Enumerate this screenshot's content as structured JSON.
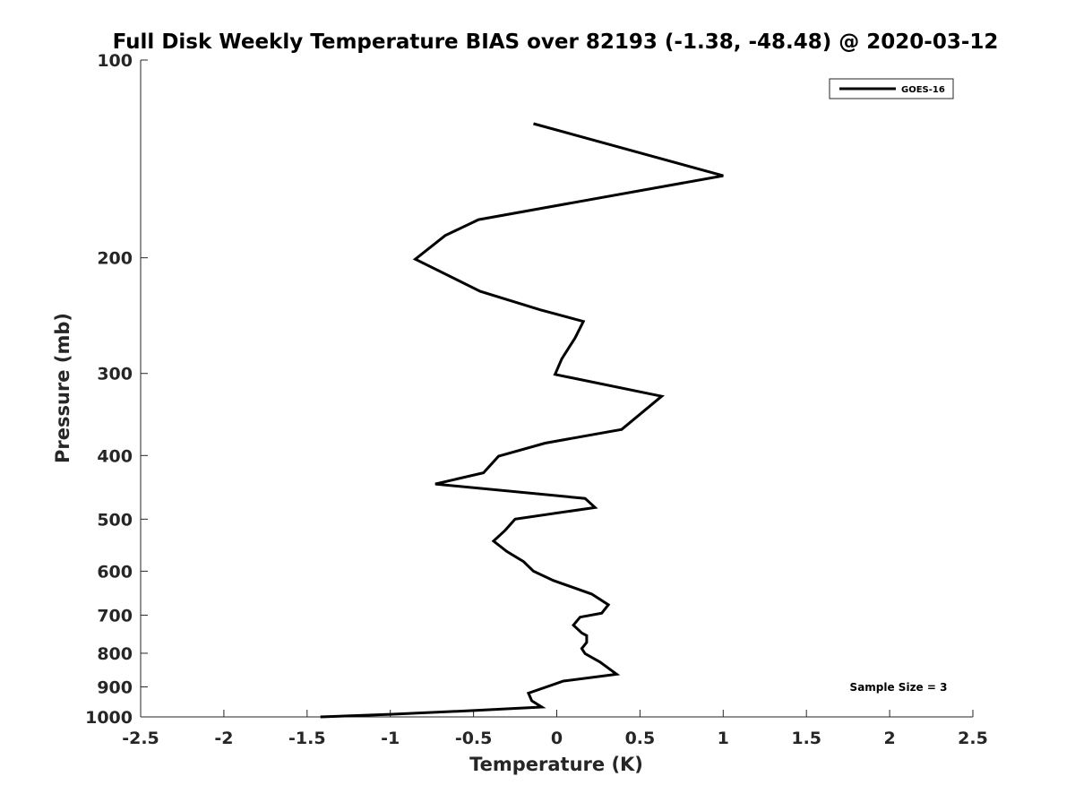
{
  "chart_data": {
    "type": "line",
    "title": "Full Disk Weekly Temperature BIAS over 82193 (-1.38, -48.48) @ 2020-03-12",
    "xlabel": "Temperature (K)",
    "ylabel": "Pressure (mb)",
    "xlim": [
      -2.5,
      2.5
    ],
    "ylim": [
      100,
      1000
    ],
    "y_scale": "log",
    "y_reversed": true,
    "grid": false,
    "legend_position": "top-right",
    "x_ticks": [
      {
        "value": -2.5,
        "label": "-2.5"
      },
      {
        "value": -2,
        "label": "-2"
      },
      {
        "value": -1.5,
        "label": "-1.5"
      },
      {
        "value": -1,
        "label": "-1"
      },
      {
        "value": -0.5,
        "label": "-0.5"
      },
      {
        "value": 0,
        "label": "0"
      },
      {
        "value": 0.5,
        "label": "0.5"
      },
      {
        "value": 1,
        "label": "1"
      },
      {
        "value": 1.5,
        "label": "1.5"
      },
      {
        "value": 2,
        "label": "2"
      },
      {
        "value": 2.5,
        "label": "2.5"
      }
    ],
    "y_ticks": [
      {
        "value": 100,
        "label": "100"
      },
      {
        "value": 200,
        "label": "200"
      },
      {
        "value": 300,
        "label": "300"
      },
      {
        "value": 400,
        "label": "400"
      },
      {
        "value": 500,
        "label": "500"
      },
      {
        "value": 600,
        "label": "600"
      },
      {
        "value": 700,
        "label": "700"
      },
      {
        "value": 800,
        "label": "800"
      },
      {
        "value": 900,
        "label": "900"
      },
      {
        "value": 1000,
        "label": "1000"
      }
    ],
    "series": [
      {
        "name": "GOES-16",
        "color": "#000000",
        "points": [
          {
            "x": -0.14,
            "y": 125
          },
          {
            "x": 1.0,
            "y": 150
          },
          {
            "x": -0.47,
            "y": 175
          },
          {
            "x": -0.67,
            "y": 185
          },
          {
            "x": -0.85,
            "y": 201
          },
          {
            "x": -0.46,
            "y": 225
          },
          {
            "x": -0.1,
            "y": 240
          },
          {
            "x": 0.16,
            "y": 250
          },
          {
            "x": 0.11,
            "y": 265
          },
          {
            "x": 0.03,
            "y": 285
          },
          {
            "x": -0.01,
            "y": 301
          },
          {
            "x": 0.63,
            "y": 325
          },
          {
            "x": 0.39,
            "y": 365
          },
          {
            "x": -0.07,
            "y": 383
          },
          {
            "x": -0.35,
            "y": 401
          },
          {
            "x": -0.44,
            "y": 425
          },
          {
            "x": -0.73,
            "y": 442
          },
          {
            "x": 0.17,
            "y": 465
          },
          {
            "x": 0.23,
            "y": 480
          },
          {
            "x": -0.25,
            "y": 500
          },
          {
            "x": -0.31,
            "y": 520
          },
          {
            "x": -0.38,
            "y": 540
          },
          {
            "x": -0.3,
            "y": 560
          },
          {
            "x": -0.2,
            "y": 580
          },
          {
            "x": -0.14,
            "y": 600
          },
          {
            "x": -0.02,
            "y": 620
          },
          {
            "x": 0.21,
            "y": 650
          },
          {
            "x": 0.31,
            "y": 675
          },
          {
            "x": 0.27,
            "y": 695
          },
          {
            "x": 0.14,
            "y": 705
          },
          {
            "x": 0.1,
            "y": 725
          },
          {
            "x": 0.15,
            "y": 745
          },
          {
            "x": 0.18,
            "y": 752
          },
          {
            "x": 0.18,
            "y": 770
          },
          {
            "x": 0.15,
            "y": 787
          },
          {
            "x": 0.17,
            "y": 801
          },
          {
            "x": 0.26,
            "y": 825
          },
          {
            "x": 0.33,
            "y": 850
          },
          {
            "x": 0.36,
            "y": 861
          },
          {
            "x": 0.04,
            "y": 882
          },
          {
            "x": -0.17,
            "y": 920
          },
          {
            "x": -0.15,
            "y": 945
          },
          {
            "x": -0.09,
            "y": 966
          },
          {
            "x": -0.5,
            "y": 978
          },
          {
            "x": -1.0,
            "y": 991
          },
          {
            "x": -1.42,
            "y": 1000
          }
        ]
      }
    ],
    "legend": [
      {
        "label": "GOES-16",
        "color": "#000000"
      }
    ],
    "annotations": [
      {
        "text": "Sample Size = 3",
        "position": "bottom-right"
      }
    ]
  }
}
